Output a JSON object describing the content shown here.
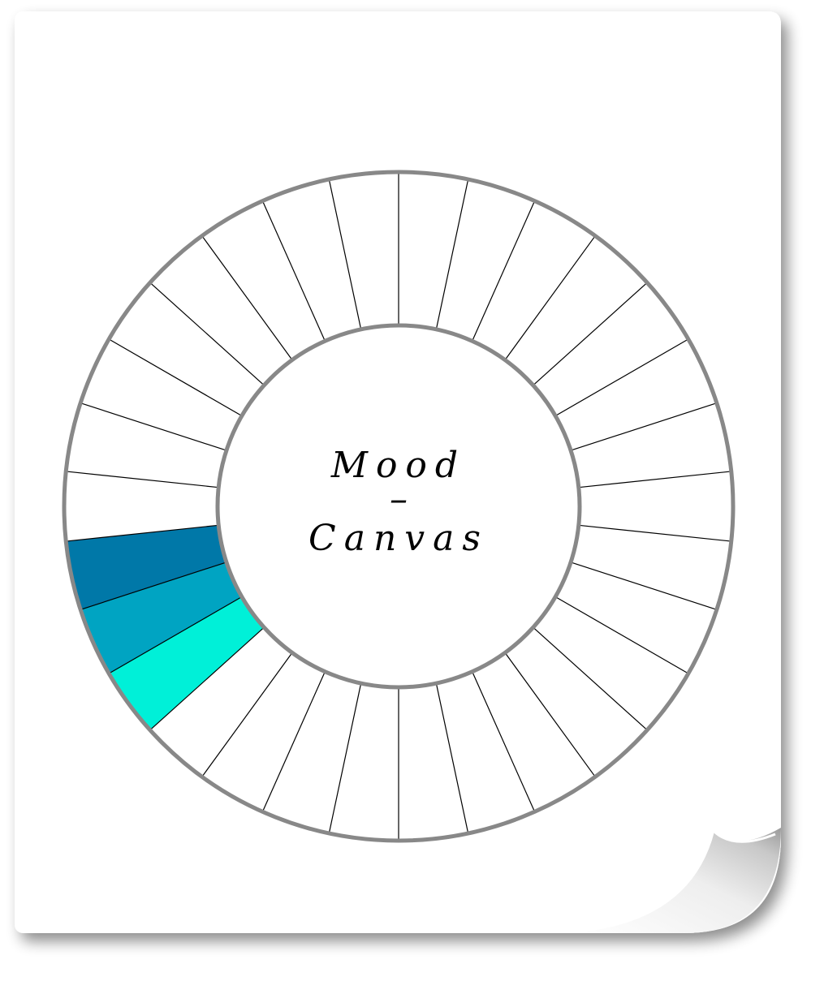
{
  "wheel": {
    "title_line1": "Mood",
    "title_separator": "–",
    "title_line2": "Canvas",
    "segment_count": 30,
    "filled_segments": [
      {
        "index": 0,
        "color": "#0078a8"
      },
      {
        "index": 1,
        "color": "#00a4c2"
      },
      {
        "index": 2,
        "color": "#00f0d8"
      }
    ],
    "colors": {
      "ring_stroke": "#888888",
      "divider_stroke": "#000000",
      "empty_fill": "#ffffff",
      "paper": "#ffffff"
    }
  }
}
